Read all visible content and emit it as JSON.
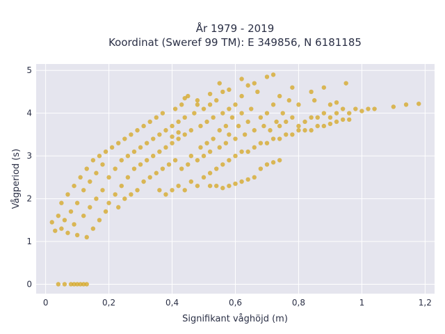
{
  "chart_data": {
    "type": "scatter",
    "title": "År 1979 - 2019",
    "subtitle": "Koordinat (Sweref 99 TM): E 349856, N 6181185",
    "xlabel": "Signifikant våghöjd (m)",
    "ylabel": "Vågperiod (s)",
    "xlim": [
      -0.03,
      1.23
    ],
    "ylim": [
      -0.22,
      5.15
    ],
    "x_ticks": [
      0,
      0.2,
      0.4,
      0.6,
      0.8,
      1,
      1.2
    ],
    "x_tick_labels": [
      "0",
      "0,2",
      "0,4",
      "0,6",
      "0,8",
      "1",
      "1,2"
    ],
    "y_ticks": [
      0,
      1,
      2,
      3,
      4,
      5
    ],
    "y_tick_labels": [
      "0",
      "1",
      "2",
      "3",
      "4",
      "5"
    ],
    "grid": true,
    "marker_color": "#D4A520",
    "plot_background": "#E5E5EE",
    "points": [
      [
        0.04,
        0.0
      ],
      [
        0.06,
        0.0
      ],
      [
        0.08,
        0.0
      ],
      [
        0.09,
        0.0
      ],
      [
        0.1,
        0.0
      ],
      [
        0.11,
        0.0
      ],
      [
        0.12,
        0.0
      ],
      [
        0.13,
        0.0
      ],
      [
        0.02,
        1.45
      ],
      [
        0.03,
        1.25
      ],
      [
        0.04,
        1.6
      ],
      [
        0.05,
        1.3
      ],
      [
        0.05,
        1.9
      ],
      [
        0.06,
        1.5
      ],
      [
        0.07,
        1.2
      ],
      [
        0.07,
        2.1
      ],
      [
        0.08,
        1.7
      ],
      [
        0.09,
        1.4
      ],
      [
        0.09,
        2.3
      ],
      [
        0.1,
        1.15
      ],
      [
        0.1,
        1.9
      ],
      [
        0.11,
        2.5
      ],
      [
        0.12,
        1.6
      ],
      [
        0.12,
        2.2
      ],
      [
        0.13,
        1.1
      ],
      [
        0.13,
        2.7
      ],
      [
        0.14,
        1.8
      ],
      [
        0.14,
        2.4
      ],
      [
        0.15,
        1.3
      ],
      [
        0.15,
        2.9
      ],
      [
        0.16,
        2.0
      ],
      [
        0.16,
        2.6
      ],
      [
        0.17,
        1.5
      ],
      [
        0.17,
        3.0
      ],
      [
        0.18,
        2.2
      ],
      [
        0.18,
        2.8
      ],
      [
        0.19,
        1.7
      ],
      [
        0.19,
        3.1
      ],
      [
        0.2,
        1.9
      ],
      [
        0.2,
        2.5
      ],
      [
        0.21,
        3.2
      ],
      [
        0.22,
        2.1
      ],
      [
        0.22,
        2.7
      ],
      [
        0.23,
        1.8
      ],
      [
        0.23,
        3.3
      ],
      [
        0.24,
        2.3
      ],
      [
        0.24,
        2.9
      ],
      [
        0.25,
        2.0
      ],
      [
        0.25,
        3.4
      ],
      [
        0.26,
        2.5
      ],
      [
        0.26,
        3.0
      ],
      [
        0.27,
        2.1
      ],
      [
        0.27,
        3.5
      ],
      [
        0.28,
        2.7
      ],
      [
        0.28,
        3.1
      ],
      [
        0.29,
        2.2
      ],
      [
        0.29,
        3.6
      ],
      [
        0.3,
        2.8
      ],
      [
        0.3,
        3.2
      ],
      [
        0.31,
        2.4
      ],
      [
        0.31,
        3.7
      ],
      [
        0.32,
        2.9
      ],
      [
        0.32,
        3.3
      ],
      [
        0.33,
        2.5
      ],
      [
        0.33,
        3.8
      ],
      [
        0.34,
        3.0
      ],
      [
        0.34,
        3.4
      ],
      [
        0.35,
        2.6
      ],
      [
        0.35,
        3.9
      ],
      [
        0.36,
        3.1
      ],
      [
        0.36,
        3.5
      ],
      [
        0.37,
        2.7
      ],
      [
        0.37,
        4.0
      ],
      [
        0.38,
        3.2
      ],
      [
        0.38,
        3.6
      ],
      [
        0.39,
        2.8
      ],
      [
        0.4,
        3.3
      ],
      [
        0.4,
        3.7
      ],
      [
        0.41,
        2.9
      ],
      [
        0.41,
        4.1
      ],
      [
        0.42,
        3.4
      ],
      [
        0.42,
        3.8
      ],
      [
        0.43,
        2.7
      ],
      [
        0.43,
        4.2
      ],
      [
        0.44,
        3.5
      ],
      [
        0.44,
        3.9
      ],
      [
        0.45,
        2.8
      ],
      [
        0.45,
        4.4
      ],
      [
        0.46,
        3.0
      ],
      [
        0.46,
        3.6
      ],
      [
        0.47,
        4.0
      ],
      [
        0.48,
        2.9
      ],
      [
        0.48,
        4.3
      ],
      [
        0.49,
        3.2
      ],
      [
        0.49,
        3.7
      ],
      [
        0.5,
        4.1
      ],
      [
        0.5,
        3.0
      ],
      [
        0.51,
        3.3
      ],
      [
        0.51,
        3.8
      ],
      [
        0.52,
        4.2
      ],
      [
        0.52,
        3.1
      ],
      [
        0.53,
        3.4
      ],
      [
        0.53,
        3.9
      ],
      [
        0.54,
        4.3
      ],
      [
        0.55,
        3.2
      ],
      [
        0.55,
        3.6
      ],
      [
        0.56,
        4.0
      ],
      [
        0.56,
        4.5
      ],
      [
        0.57,
        3.3
      ],
      [
        0.57,
        3.7
      ],
      [
        0.58,
        4.1
      ],
      [
        0.58,
        3.5
      ],
      [
        0.59,
        3.9
      ],
      [
        0.6,
        4.2
      ],
      [
        0.6,
        3.4
      ],
      [
        0.61,
        3.7
      ],
      [
        0.62,
        4.0
      ],
      [
        0.62,
        4.4
      ],
      [
        0.63,
        3.5
      ],
      [
        0.64,
        3.8
      ],
      [
        0.65,
        4.1
      ],
      [
        0.66,
        3.6
      ],
      [
        0.67,
        4.5
      ],
      [
        0.68,
        3.9
      ],
      [
        0.69,
        3.7
      ],
      [
        0.7,
        4.0
      ],
      [
        0.71,
        3.6
      ],
      [
        0.72,
        4.2
      ],
      [
        0.73,
        3.8
      ],
      [
        0.74,
        3.7
      ],
      [
        0.75,
        4.0
      ],
      [
        0.76,
        3.8
      ],
      [
        0.77,
        4.3
      ],
      [
        0.78,
        3.9
      ],
      [
        0.8,
        3.7
      ],
      [
        0.82,
        3.8
      ],
      [
        0.84,
        3.9
      ],
      [
        0.86,
        3.9
      ],
      [
        0.88,
        4.0
      ],
      [
        0.9,
        3.9
      ],
      [
        0.92,
        4.0
      ],
      [
        0.94,
        4.1
      ],
      [
        0.96,
        4.0
      ],
      [
        0.98,
        4.1
      ],
      [
        1.0,
        4.05
      ],
      [
        1.02,
        4.1
      ],
      [
        1.04,
        4.1
      ],
      [
        1.1,
        4.15
      ],
      [
        1.14,
        4.2
      ],
      [
        1.18,
        4.22
      ],
      [
        0.62,
        4.8
      ],
      [
        0.64,
        4.65
      ],
      [
        0.66,
        4.7
      ],
      [
        0.7,
        4.85
      ],
      [
        0.72,
        4.9
      ],
      [
        0.78,
        4.6
      ],
      [
        0.88,
        4.6
      ],
      [
        0.95,
        4.7
      ],
      [
        0.58,
        4.55
      ],
      [
        0.55,
        4.7
      ],
      [
        0.52,
        4.45
      ],
      [
        0.48,
        4.2
      ],
      [
        0.44,
        4.35
      ],
      [
        0.4,
        3.45
      ],
      [
        0.42,
        3.55
      ],
      [
        0.84,
        4.5
      ],
      [
        0.8,
        4.2
      ],
      [
        0.74,
        4.4
      ],
      [
        0.85,
        4.3
      ],
      [
        0.9,
        4.2
      ],
      [
        0.92,
        4.25
      ],
      [
        0.36,
        2.2
      ],
      [
        0.38,
        2.1
      ],
      [
        0.4,
        2.2
      ],
      [
        0.42,
        2.3
      ],
      [
        0.44,
        2.2
      ],
      [
        0.46,
        2.4
      ],
      [
        0.48,
        2.3
      ],
      [
        0.5,
        2.5
      ],
      [
        0.52,
        2.6
      ],
      [
        0.54,
        2.7
      ],
      [
        0.56,
        2.8
      ],
      [
        0.58,
        2.9
      ],
      [
        0.6,
        3.0
      ],
      [
        0.62,
        3.1
      ],
      [
        0.64,
        3.1
      ],
      [
        0.66,
        3.2
      ],
      [
        0.68,
        3.3
      ],
      [
        0.7,
        3.3
      ],
      [
        0.72,
        3.4
      ],
      [
        0.74,
        3.4
      ],
      [
        0.76,
        3.5
      ],
      [
        0.78,
        3.5
      ],
      [
        0.8,
        3.6
      ],
      [
        0.82,
        3.6
      ],
      [
        0.84,
        3.6
      ],
      [
        0.86,
        3.7
      ],
      [
        0.88,
        3.7
      ],
      [
        0.9,
        3.75
      ],
      [
        0.92,
        3.8
      ],
      [
        0.94,
        3.85
      ],
      [
        0.96,
        3.85
      ],
      [
        0.52,
        2.3
      ],
      [
        0.54,
        2.3
      ],
      [
        0.56,
        2.25
      ],
      [
        0.58,
        2.3
      ],
      [
        0.6,
        2.35
      ],
      [
        0.62,
        2.4
      ],
      [
        0.64,
        2.45
      ],
      [
        0.66,
        2.5
      ],
      [
        0.68,
        2.7
      ],
      [
        0.7,
        2.8
      ],
      [
        0.72,
        2.85
      ],
      [
        0.74,
        2.9
      ]
    ]
  }
}
